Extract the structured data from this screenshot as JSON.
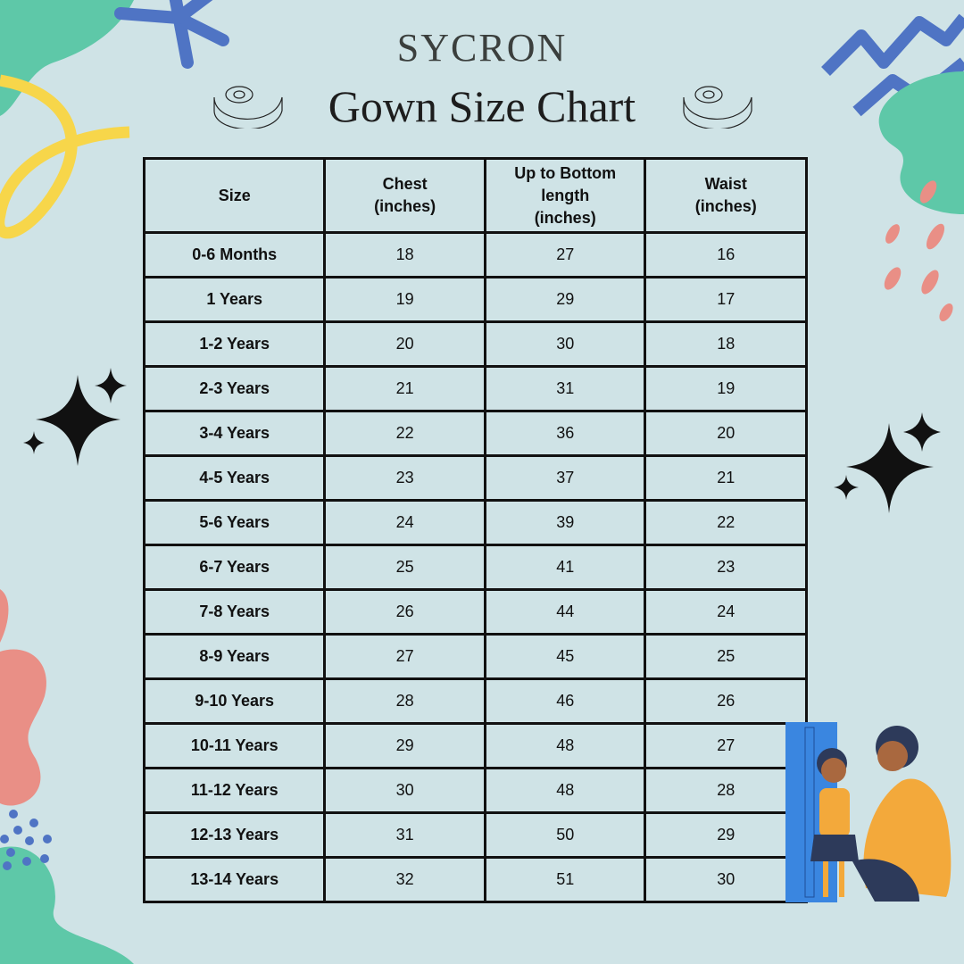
{
  "brand": "SYCRON",
  "title": "Gown Size Chart",
  "icons": [
    "measuring-tape-icon",
    "sparkle-icon",
    "child-measurement-illustration"
  ],
  "colors": {
    "background": "#cfe3e6",
    "teal": "#5ec8a8",
    "blue": "#4f74c4",
    "yellow": "#f7d64a",
    "coral": "#e98f86",
    "border": "#111111"
  },
  "table": {
    "headers": [
      [
        "Size"
      ],
      [
        "Chest",
        "(inches)"
      ],
      [
        "Up to Bottom",
        "length",
        "(inches)"
      ],
      [
        "Waist",
        "(inches)"
      ]
    ],
    "rows": [
      [
        "0-6 Months",
        "18",
        "27",
        "16"
      ],
      [
        "1 Years",
        "19",
        "29",
        "17"
      ],
      [
        "1-2 Years",
        "20",
        "30",
        "18"
      ],
      [
        "2-3 Years",
        "21",
        "31",
        "19"
      ],
      [
        "3-4 Years",
        "22",
        "36",
        "20"
      ],
      [
        "4-5 Years",
        "23",
        "37",
        "21"
      ],
      [
        "5-6 Years",
        "24",
        "39",
        "22"
      ],
      [
        "6-7 Years",
        "25",
        "41",
        "23"
      ],
      [
        "7-8 Years",
        "26",
        "44",
        "24"
      ],
      [
        "8-9 Years",
        "27",
        "45",
        "25"
      ],
      [
        "9-10 Years",
        "28",
        "46",
        "26"
      ],
      [
        "10-11 Years",
        "29",
        "48",
        "27"
      ],
      [
        "11-12 Years",
        "30",
        "48",
        "28"
      ],
      [
        "12-13 Years",
        "31",
        "50",
        "29"
      ],
      [
        "13-14 Years",
        "32",
        "51",
        "30"
      ]
    ]
  }
}
